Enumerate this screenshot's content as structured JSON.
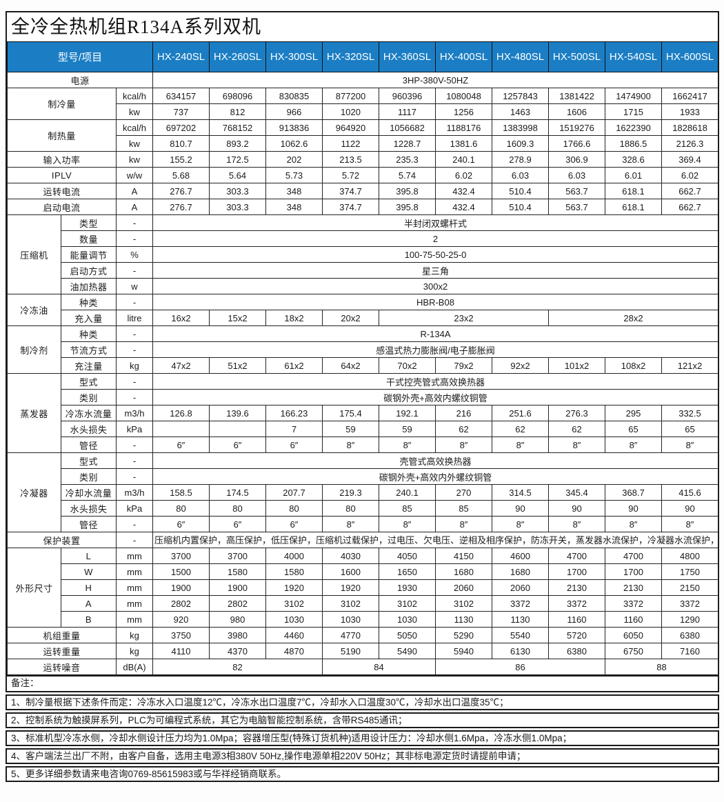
{
  "title": "全冷全热机组R134A系列双机",
  "colors": {
    "header_bg": "#1b7ec4",
    "header_text": "#ffffff",
    "border": "#1a1a1a",
    "body_text": "#1a1a1a"
  },
  "table": {
    "corner_label": "型号/项目",
    "models": [
      "HX-240SL",
      "HX-260SL",
      "HX-300SL",
      "HX-320SL",
      "HX-360SL",
      "HX-400SL",
      "HX-480SL",
      "HX-500SL",
      "HX-540SL",
      "HX-600SL"
    ],
    "rows": [
      [
        {
          "t": "电源",
          "cs": 3,
          "c": "lab"
        },
        {
          "t": "3HP-380V-50HZ",
          "cs": 10
        }
      ],
      [
        {
          "t": "制冷量",
          "cs": 2,
          "rs": 2,
          "c": "lab"
        },
        {
          "t": "kcal/h",
          "c": "unit"
        },
        {
          "t": "634157"
        },
        {
          "t": "698096"
        },
        {
          "t": "830835"
        },
        {
          "t": "877200"
        },
        {
          "t": "960396"
        },
        {
          "t": "1080048"
        },
        {
          "t": "1257843"
        },
        {
          "t": "1381422"
        },
        {
          "t": "1474900"
        },
        {
          "t": "1662417"
        }
      ],
      [
        {
          "t": "kw",
          "c": "unit"
        },
        {
          "t": "737"
        },
        {
          "t": "812"
        },
        {
          "t": "966"
        },
        {
          "t": "1020"
        },
        {
          "t": "1117"
        },
        {
          "t": "1256"
        },
        {
          "t": "1463"
        },
        {
          "t": "1606"
        },
        {
          "t": "1715"
        },
        {
          "t": "1933"
        }
      ],
      [
        {
          "t": "制热量",
          "cs": 2,
          "rs": 2,
          "c": "lab"
        },
        {
          "t": "kcal/h",
          "c": "unit"
        },
        {
          "t": "697202"
        },
        {
          "t": "768152"
        },
        {
          "t": "913836"
        },
        {
          "t": "964920"
        },
        {
          "t": "1056682"
        },
        {
          "t": "1188176"
        },
        {
          "t": "1383998"
        },
        {
          "t": "1519276"
        },
        {
          "t": "1622390"
        },
        {
          "t": "1828618"
        }
      ],
      [
        {
          "t": "kw",
          "c": "unit"
        },
        {
          "t": "810.7"
        },
        {
          "t": "893.2"
        },
        {
          "t": "1062.6"
        },
        {
          "t": "1122"
        },
        {
          "t": "1228.7"
        },
        {
          "t": "1381.6"
        },
        {
          "t": "1609.3"
        },
        {
          "t": "1766.6"
        },
        {
          "t": "1886.5"
        },
        {
          "t": "2126.3"
        }
      ],
      [
        {
          "t": "输入功率",
          "cs": 2,
          "c": "lab"
        },
        {
          "t": "kw",
          "c": "unit"
        },
        {
          "t": "155.2"
        },
        {
          "t": "172.5"
        },
        {
          "t": "202"
        },
        {
          "t": "213.5"
        },
        {
          "t": "235.3"
        },
        {
          "t": "240.1"
        },
        {
          "t": "278.9"
        },
        {
          "t": "306.9"
        },
        {
          "t": "328.6"
        },
        {
          "t": "369.4"
        }
      ],
      [
        {
          "t": "IPLV",
          "cs": 2,
          "c": "lab"
        },
        {
          "t": "w/w",
          "c": "unit"
        },
        {
          "t": "5.68"
        },
        {
          "t": "5.64"
        },
        {
          "t": "5.73"
        },
        {
          "t": "5.72"
        },
        {
          "t": "5.74"
        },
        {
          "t": "6.02"
        },
        {
          "t": "6.03"
        },
        {
          "t": "6.03"
        },
        {
          "t": "6.01"
        },
        {
          "t": "6.02"
        }
      ],
      [
        {
          "t": "运转电流",
          "cs": 2,
          "c": "lab"
        },
        {
          "t": "A",
          "c": "unit"
        },
        {
          "t": "276.7"
        },
        {
          "t": "303.3"
        },
        {
          "t": "348"
        },
        {
          "t": "374.7"
        },
        {
          "t": "395.8"
        },
        {
          "t": "432.4"
        },
        {
          "t": "510.4"
        },
        {
          "t": "563.7"
        },
        {
          "t": "618.1"
        },
        {
          "t": "662.7"
        }
      ],
      [
        {
          "t": "启动电流",
          "cs": 2,
          "c": "lab"
        },
        {
          "t": "A",
          "c": "unit"
        },
        {
          "t": "276.7"
        },
        {
          "t": "303.3"
        },
        {
          "t": "348"
        },
        {
          "t": "374.7"
        },
        {
          "t": "395.8"
        },
        {
          "t": "432.4"
        },
        {
          "t": "510.4"
        },
        {
          "t": "563.7"
        },
        {
          "t": "618.1"
        },
        {
          "t": "662.7"
        }
      ],
      [
        {
          "t": "压缩机",
          "rs": 5,
          "c": "lab"
        },
        {
          "t": "类型",
          "c": "lab"
        },
        {
          "t": "-",
          "c": "unit"
        },
        {
          "t": "半封闭双螺杆式",
          "cs": 10
        }
      ],
      [
        {
          "t": "数量",
          "c": "lab"
        },
        {
          "t": "-",
          "c": "unit"
        },
        {
          "t": "2",
          "cs": 10
        }
      ],
      [
        {
          "t": "能量调节",
          "c": "lab"
        },
        {
          "t": "%",
          "c": "unit"
        },
        {
          "t": "100-75-50-25-0",
          "cs": 10
        }
      ],
      [
        {
          "t": "启动方式",
          "c": "lab"
        },
        {
          "t": "-",
          "c": "unit"
        },
        {
          "t": "星三角",
          "cs": 10
        }
      ],
      [
        {
          "t": "油加热器",
          "c": "lab"
        },
        {
          "t": "w",
          "c": "unit"
        },
        {
          "t": "300x2",
          "cs": 10
        }
      ],
      [
        {
          "t": "冷冻油",
          "rs": 2,
          "c": "lab"
        },
        {
          "t": "种类",
          "c": "lab"
        },
        {
          "t": "-",
          "c": "unit"
        },
        {
          "t": "HBR-B08",
          "cs": 10
        }
      ],
      [
        {
          "t": "充入量",
          "c": "lab"
        },
        {
          "t": "litre",
          "c": "unit"
        },
        {
          "t": "16x2"
        },
        {
          "t": "15x2"
        },
        {
          "t": "18x2"
        },
        {
          "t": "20x2"
        },
        {
          "t": "23x2",
          "cs": 3
        },
        {
          "t": "28x2",
          "cs": 3
        }
      ],
      [
        {
          "t": "制冷剂",
          "rs": 3,
          "c": "lab"
        },
        {
          "t": "种类",
          "c": "lab"
        },
        {
          "t": "-",
          "c": "unit"
        },
        {
          "t": "R-134A",
          "cs": 10
        }
      ],
      [
        {
          "t": "节流方式",
          "c": "lab"
        },
        {
          "t": "-",
          "c": "unit"
        },
        {
          "t": "感温式热力膨胀阀/电子膨胀阀",
          "cs": 10
        }
      ],
      [
        {
          "t": "充注量",
          "c": "lab"
        },
        {
          "t": "kg",
          "c": "unit"
        },
        {
          "t": "47x2"
        },
        {
          "t": "51x2"
        },
        {
          "t": "61x2"
        },
        {
          "t": "64x2"
        },
        {
          "t": "70x2"
        },
        {
          "t": "79x2"
        },
        {
          "t": "92x2"
        },
        {
          "t": "101x2"
        },
        {
          "t": "108x2"
        },
        {
          "t": "121x2"
        }
      ],
      [
        {
          "t": "蒸发器",
          "rs": 5,
          "c": "lab"
        },
        {
          "t": "型式",
          "c": "lab"
        },
        {
          "t": "-",
          "c": "unit"
        },
        {
          "t": "干式控壳管式高效换热器",
          "cs": 10
        }
      ],
      [
        {
          "t": "类别",
          "c": "lab"
        },
        {
          "t": "-",
          "c": "unit"
        },
        {
          "t": "碳钢外壳+高效内螺纹铜管",
          "cs": 10
        }
      ],
      [
        {
          "t": "冷冻水流量",
          "c": "lab"
        },
        {
          "t": "m3/h",
          "c": "unit"
        },
        {
          "t": "126.8"
        },
        {
          "t": "139.6"
        },
        {
          "t": "166.23"
        },
        {
          "t": "175.4"
        },
        {
          "t": "192.1"
        },
        {
          "t": "216"
        },
        {
          "t": "251.6"
        },
        {
          "t": "276.3"
        },
        {
          "t": "295"
        },
        {
          "t": "332.5"
        }
      ],
      [
        {
          "t": "水头损失",
          "c": "lab"
        },
        {
          "t": "kPa",
          "c": "unit"
        },
        {
          "t": ""
        },
        {
          "t": ""
        },
        {
          "t": "7"
        },
        {
          "t": "59"
        },
        {
          "t": "59"
        },
        {
          "t": "62"
        },
        {
          "t": "62"
        },
        {
          "t": "62"
        },
        {
          "t": "65"
        },
        {
          "t": "65"
        }
      ],
      [
        {
          "t": "管径",
          "c": "lab"
        },
        {
          "t": "-",
          "c": "unit"
        },
        {
          "t": "6″"
        },
        {
          "t": "6″"
        },
        {
          "t": "6″"
        },
        {
          "t": "8″"
        },
        {
          "t": "8″"
        },
        {
          "t": "8″"
        },
        {
          "t": "8″"
        },
        {
          "t": "8″"
        },
        {
          "t": "8″"
        },
        {
          "t": "8″"
        }
      ],
      [
        {
          "t": "冷凝器",
          "rs": 5,
          "c": "lab"
        },
        {
          "t": "型式",
          "c": "lab"
        },
        {
          "t": "-",
          "c": "unit"
        },
        {
          "t": "壳管式高效换热器",
          "cs": 10
        }
      ],
      [
        {
          "t": "类别",
          "c": "lab"
        },
        {
          "t": "-",
          "c": "unit"
        },
        {
          "t": "碳钢外壳+高效内外螺纹铜管",
          "cs": 10
        }
      ],
      [
        {
          "t": "冷却水流量",
          "c": "lab"
        },
        {
          "t": "m3/h",
          "c": "unit"
        },
        {
          "t": "158.5"
        },
        {
          "t": "174.5"
        },
        {
          "t": "207.7"
        },
        {
          "t": "219.3"
        },
        {
          "t": "240.1"
        },
        {
          "t": "270"
        },
        {
          "t": "314.5"
        },
        {
          "t": "345.4"
        },
        {
          "t": "368.7"
        },
        {
          "t": "415.6"
        }
      ],
      [
        {
          "t": "水头损失",
          "c": "lab"
        },
        {
          "t": "kPa",
          "c": "unit"
        },
        {
          "t": "80"
        },
        {
          "t": "80"
        },
        {
          "t": "80"
        },
        {
          "t": "80"
        },
        {
          "t": "85"
        },
        {
          "t": "85"
        },
        {
          "t": "90"
        },
        {
          "t": "90"
        },
        {
          "t": "90"
        },
        {
          "t": "90"
        }
      ],
      [
        {
          "t": "管径",
          "c": "lab"
        },
        {
          "t": "-",
          "c": "unit"
        },
        {
          "t": "6″"
        },
        {
          "t": "6″"
        },
        {
          "t": "6″"
        },
        {
          "t": "8″"
        },
        {
          "t": "8″"
        },
        {
          "t": "8″"
        },
        {
          "t": "8″"
        },
        {
          "t": "8″"
        },
        {
          "t": "8″"
        },
        {
          "t": "8″"
        }
      ],
      [
        {
          "t": "保护装置",
          "cs": 2,
          "c": "lab"
        },
        {
          "t": "-",
          "c": "unit"
        },
        {
          "t": "压缩机内置保护，高压保护，低压保护，压缩机过载保护，过电压、欠电压、逆相及相序保护，防冻开关，蒸发器水流保护，冷凝器水流保护，冷冻水泵过载保护，冷却水泵过载保护，冷却塔风机过载保护，冷却水温度过高保护，可熔栓等。可选的油位开关及油压差开关。",
          "cs": 10,
          "c": "left"
        }
      ],
      [
        {
          "t": "外形尺寸",
          "rs": 5,
          "c": "lab"
        },
        {
          "t": "L",
          "c": "lab"
        },
        {
          "t": "mm",
          "c": "unit"
        },
        {
          "t": "3700"
        },
        {
          "t": "3700"
        },
        {
          "t": "4000"
        },
        {
          "t": "4030"
        },
        {
          "t": "4050"
        },
        {
          "t": "4150"
        },
        {
          "t": "4600"
        },
        {
          "t": "4700"
        },
        {
          "t": "4700"
        },
        {
          "t": "4800"
        }
      ],
      [
        {
          "t": "W",
          "c": "lab"
        },
        {
          "t": "mm",
          "c": "unit"
        },
        {
          "t": "1500"
        },
        {
          "t": "1580"
        },
        {
          "t": "1580"
        },
        {
          "t": "1600"
        },
        {
          "t": "1650"
        },
        {
          "t": "1680"
        },
        {
          "t": "1680"
        },
        {
          "t": "1700"
        },
        {
          "t": "1700"
        },
        {
          "t": "1750"
        }
      ],
      [
        {
          "t": "H",
          "c": "lab"
        },
        {
          "t": "mm",
          "c": "unit"
        },
        {
          "t": "1900"
        },
        {
          "t": "1900"
        },
        {
          "t": "1920"
        },
        {
          "t": "1920"
        },
        {
          "t": "1930"
        },
        {
          "t": "2060"
        },
        {
          "t": "2060"
        },
        {
          "t": "2130"
        },
        {
          "t": "2130"
        },
        {
          "t": "2150"
        }
      ],
      [
        {
          "t": "A",
          "c": "lab"
        },
        {
          "t": "mm",
          "c": "unit"
        },
        {
          "t": "2802"
        },
        {
          "t": "2802"
        },
        {
          "t": "3102"
        },
        {
          "t": "3102"
        },
        {
          "t": "3102"
        },
        {
          "t": "3102"
        },
        {
          "t": "3372"
        },
        {
          "t": "3372"
        },
        {
          "t": "3372"
        },
        {
          "t": "3372"
        }
      ],
      [
        {
          "t": "B",
          "c": "lab"
        },
        {
          "t": "mm",
          "c": "unit"
        },
        {
          "t": "920"
        },
        {
          "t": "980"
        },
        {
          "t": "1030"
        },
        {
          "t": "1030"
        },
        {
          "t": "1030"
        },
        {
          "t": "1130"
        },
        {
          "t": "1130"
        },
        {
          "t": "1160"
        },
        {
          "t": "1160"
        },
        {
          "t": "1290"
        }
      ],
      [
        {
          "t": "机组重量",
          "cs": 2,
          "c": "lab"
        },
        {
          "t": "kg",
          "c": "unit"
        },
        {
          "t": "3750"
        },
        {
          "t": "3980"
        },
        {
          "t": "4460"
        },
        {
          "t": "4770"
        },
        {
          "t": "5050"
        },
        {
          "t": "5290"
        },
        {
          "t": "5540"
        },
        {
          "t": "5720"
        },
        {
          "t": "6050"
        },
        {
          "t": "6380"
        }
      ],
      [
        {
          "t": "运转重量",
          "cs": 2,
          "c": "lab"
        },
        {
          "t": "kg",
          "c": "unit"
        },
        {
          "t": "4110"
        },
        {
          "t": "4370"
        },
        {
          "t": "4870"
        },
        {
          "t": "5190"
        },
        {
          "t": "5490"
        },
        {
          "t": "5940"
        },
        {
          "t": "6130"
        },
        {
          "t": "6380"
        },
        {
          "t": "6750"
        },
        {
          "t": "7160"
        }
      ],
      [
        {
          "t": "运转噪音",
          "cs": 2,
          "c": "lab"
        },
        {
          "t": "dB(A)",
          "c": "unit"
        },
        {
          "t": "82",
          "cs": 3
        },
        {
          "t": "84",
          "cs": 2
        },
        {
          "t": "86",
          "cs": 3
        },
        {
          "t": "88",
          "cs": 2
        }
      ]
    ]
  },
  "notes": {
    "header": "备注：",
    "items": [
      "1、制冷量根据下述条件而定：冷冻水入口温度12℃，冷冻水出口温度7℃，冷却水入口温度30℃，冷却水出口温度35℃；",
      "2、控制系统为触摸屏系列，PLC为可编程式系统，其它为电脑智能控制系统，含带RS485通讯；",
      "3、标准机型冷冻水侧，冷却水侧设计压力均为1.0Mpa；容器增压型(特殊订货机种)适用设计压力：冷却水侧1.6Mpa，冷冻水侧1.0Mpa；",
      "4、客户端法兰出厂不附，由客户自备，选用主电源3相380V 50Hz,操作电源单相220V 50Hz；其非标电源定货时请提前申请；",
      "5、更多详细参数请来电咨询0769-85615983或与华祥经销商联系。"
    ]
  }
}
